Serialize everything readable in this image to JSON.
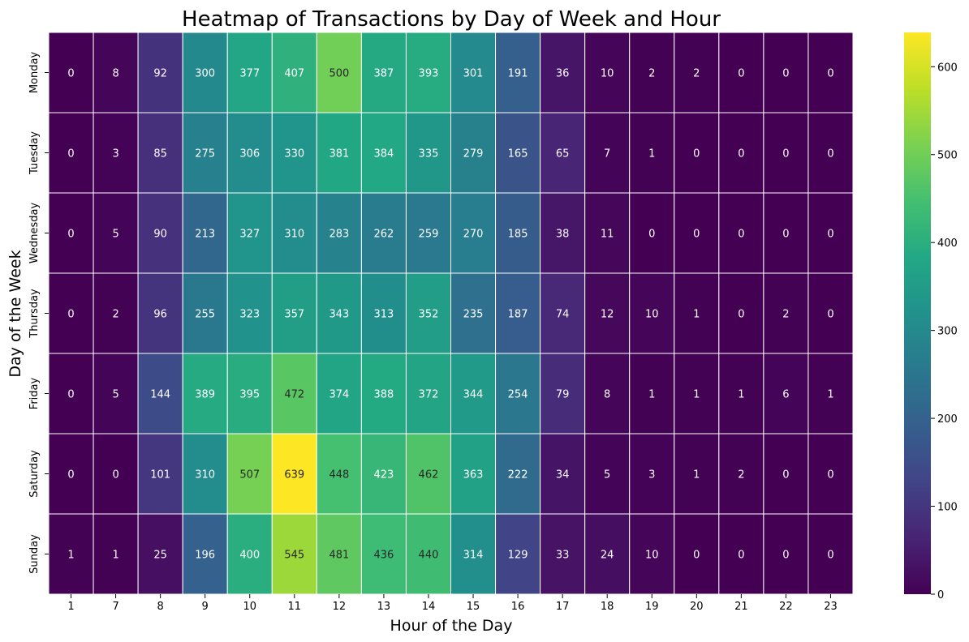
{
  "chart_data": {
    "type": "heatmap",
    "title": "Heatmap of Transactions by Day of Week and Hour",
    "xlabel": "Hour of the Day",
    "ylabel": "Day of the Week",
    "x_categories": [
      "1",
      "7",
      "8",
      "9",
      "10",
      "11",
      "12",
      "13",
      "14",
      "15",
      "16",
      "17",
      "18",
      "19",
      "20",
      "21",
      "22",
      "23"
    ],
    "y_categories": [
      "Monday",
      "Tuesday",
      "Wednesday",
      "Thursday",
      "Friday",
      "Saturday",
      "Sunday"
    ],
    "values": [
      [
        0,
        8,
        92,
        300,
        377,
        407,
        500,
        387,
        393,
        301,
        191,
        36,
        10,
        2,
        2,
        0,
        0,
        0
      ],
      [
        0,
        3,
        85,
        275,
        306,
        330,
        381,
        384,
        335,
        279,
        165,
        65,
        7,
        1,
        0,
        0,
        0,
        0
      ],
      [
        0,
        5,
        90,
        213,
        327,
        310,
        283,
        262,
        259,
        270,
        185,
        38,
        11,
        0,
        0,
        0,
        0,
        0
      ],
      [
        0,
        2,
        96,
        255,
        323,
        357,
        343,
        313,
        352,
        235,
        187,
        74,
        12,
        10,
        1,
        0,
        2,
        0
      ],
      [
        0,
        5,
        144,
        389,
        395,
        472,
        374,
        388,
        372,
        344,
        254,
        79,
        8,
        1,
        1,
        1,
        6,
        1
      ],
      [
        0,
        0,
        101,
        310,
        507,
        639,
        448,
        423,
        462,
        363,
        222,
        34,
        5,
        3,
        1,
        2,
        0,
        0
      ],
      [
        1,
        1,
        25,
        196,
        400,
        545,
        481,
        436,
        440,
        314,
        129,
        33,
        24,
        10,
        0,
        0,
        0,
        0
      ]
    ],
    "colorbar": {
      "colormap": "viridis",
      "range": [
        0,
        639
      ],
      "ticks": [
        "0",
        "100",
        "200",
        "300",
        "400",
        "500",
        "600"
      ]
    },
    "annotations": true,
    "grid": "white cell borders",
    "legend": "colorbar right"
  }
}
